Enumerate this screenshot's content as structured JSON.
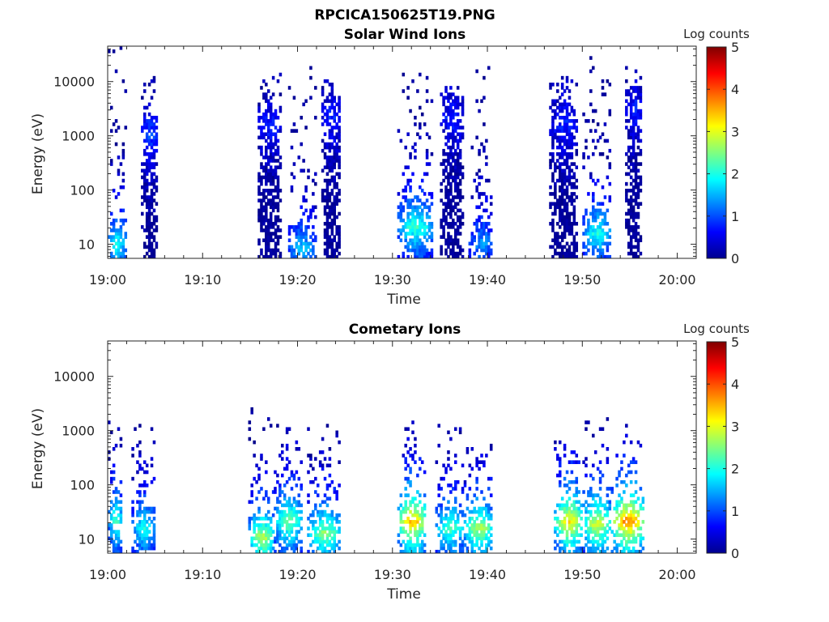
{
  "figure": {
    "filename": "RPCICA150625T19.PNG"
  },
  "colorbar": {
    "label": "Log counts",
    "ticks": [
      "0",
      "1",
      "2",
      "3",
      "4",
      "5"
    ],
    "range": [
      0,
      5
    ],
    "colormap": "jet"
  },
  "axes_common": {
    "xlabel": "Time",
    "ylabel": "Energy (eV)",
    "xticks": [
      "19:00",
      "19:10",
      "19:20",
      "19:30",
      "19:40",
      "19:50",
      "20:00"
    ],
    "yticks": [
      "10",
      "100",
      "1000",
      "10000"
    ],
    "yscale": "log",
    "ylim": [
      5.5,
      45000
    ],
    "xlim_minutes_after_1900": [
      0,
      62
    ]
  },
  "chart_data": [
    {
      "type": "heatmap",
      "title": "Solar Wind Ions",
      "xlabel": "Time",
      "ylabel": "Energy (eV)",
      "x_unit": "minutes after 19:00",
      "bursts": [
        {
          "start": 0.0,
          "end": 1.8,
          "peak_energy": 10,
          "peak_log_counts": 2.0,
          "max_energy": 40000
        },
        {
          "start": 3.5,
          "end": 5.2,
          "peak_energy": 1000,
          "peak_log_counts": 1.0,
          "max_energy": 12000
        },
        {
          "start": 15.8,
          "end": 18.2,
          "peak_energy": 1500,
          "peak_log_counts": 0.8,
          "max_energy": 15000
        },
        {
          "start": 19.0,
          "end": 21.8,
          "peak_energy": 8,
          "peak_log_counts": 1.6,
          "max_energy": 18000
        },
        {
          "start": 22.5,
          "end": 24.5,
          "peak_energy": 2000,
          "peak_log_counts": 0.8,
          "max_energy": 12000
        },
        {
          "start": 30.5,
          "end": 34.2,
          "peak_energy": 20,
          "peak_log_counts": 2.2,
          "max_energy": 14000
        },
        {
          "start": 35.0,
          "end": 37.5,
          "peak_energy": 2000,
          "peak_log_counts": 0.8,
          "max_energy": 8000
        },
        {
          "start": 38.0,
          "end": 40.5,
          "peak_energy": 10,
          "peak_log_counts": 1.4,
          "max_energy": 30000
        },
        {
          "start": 46.5,
          "end": 49.5,
          "peak_energy": 1500,
          "peak_log_counts": 0.8,
          "max_energy": 12000
        },
        {
          "start": 50.0,
          "end": 53.0,
          "peak_energy": 15,
          "peak_log_counts": 2.0,
          "max_energy": 28000
        },
        {
          "start": 54.5,
          "end": 56.2,
          "peak_energy": 3000,
          "peak_log_counts": 0.8,
          "max_energy": 17000
        }
      ]
    },
    {
      "type": "heatmap",
      "title": "Cometary Ions",
      "xlabel": "Time",
      "ylabel": "Energy (eV)",
      "x_unit": "minutes after 19:00",
      "bursts": [
        {
          "start": 0.0,
          "end": 1.5,
          "peak_energy": 20,
          "peak_log_counts": 2.3,
          "max_energy": 1500
        },
        {
          "start": 2.5,
          "end": 5.0,
          "peak_energy": 15,
          "peak_log_counts": 2.0,
          "max_energy": 1200
        },
        {
          "start": 14.8,
          "end": 17.5,
          "peak_energy": 10,
          "peak_log_counts": 2.8,
          "max_energy": 2500
        },
        {
          "start": 17.5,
          "end": 20.5,
          "peak_energy": 20,
          "peak_log_counts": 2.5,
          "max_energy": 1500
        },
        {
          "start": 21.0,
          "end": 24.5,
          "peak_energy": 12,
          "peak_log_counts": 2.6,
          "max_energy": 1200
        },
        {
          "start": 30.5,
          "end": 33.5,
          "peak_energy": 20,
          "peak_log_counts": 3.5,
          "max_energy": 1500
        },
        {
          "start": 34.5,
          "end": 37.5,
          "peak_energy": 15,
          "peak_log_counts": 2.3,
          "max_energy": 1200
        },
        {
          "start": 37.5,
          "end": 40.5,
          "peak_energy": 15,
          "peak_log_counts": 2.8,
          "max_energy": 500
        },
        {
          "start": 47.0,
          "end": 50.0,
          "peak_energy": 20,
          "peak_log_counts": 3.3,
          "max_energy": 600
        },
        {
          "start": 50.0,
          "end": 53.0,
          "peak_energy": 18,
          "peak_log_counts": 3.0,
          "max_energy": 2500
        },
        {
          "start": 53.0,
          "end": 56.5,
          "peak_energy": 20,
          "peak_log_counts": 3.8,
          "max_energy": 1200
        }
      ]
    }
  ]
}
